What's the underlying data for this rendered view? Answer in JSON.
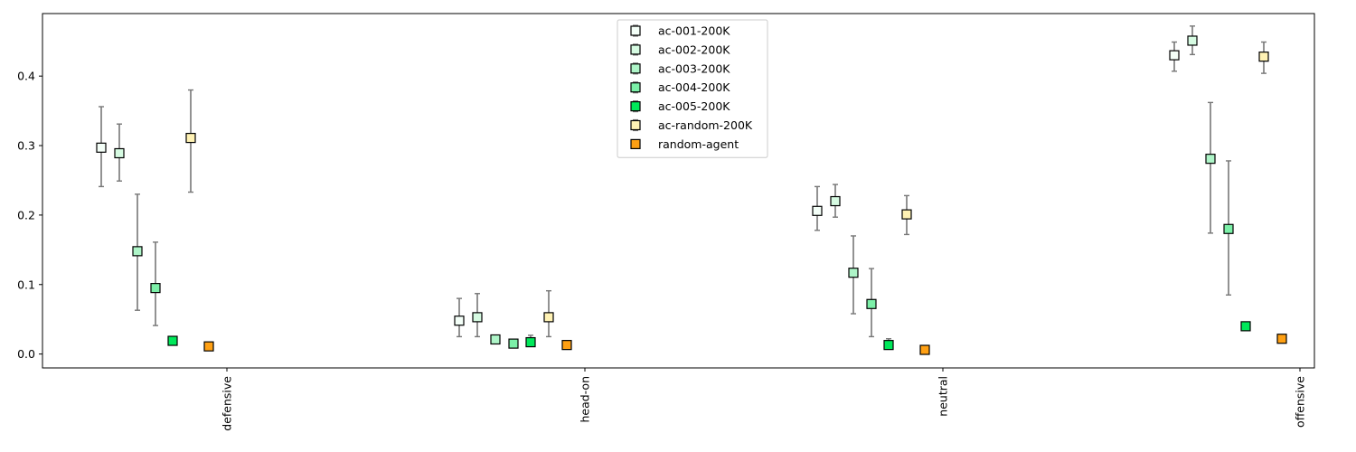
{
  "chart_data": {
    "type": "scatter",
    "title": "",
    "xlabel": "",
    "ylabel": "",
    "categories": [
      "defensive",
      "head-on",
      "neutral",
      "offensive"
    ],
    "ylim": [
      -0.02,
      0.49
    ],
    "yticks": [
      "0.0",
      "0.1",
      "0.2",
      "0.3",
      "0.4"
    ],
    "grid": false,
    "legend_position": "top-center",
    "error_bar_color": "#777777",
    "series": [
      {
        "name": "ac-001-200K",
        "color": "#f4fff8",
        "values": [
          0.297,
          0.048,
          0.206,
          0.43
        ],
        "err_low": [
          0.241,
          0.025,
          0.178,
          0.407
        ],
        "err_high": [
          0.356,
          0.08,
          0.241,
          0.449
        ]
      },
      {
        "name": "ac-002-200K",
        "color": "#d6fbe2",
        "values": [
          0.289,
          0.053,
          0.22,
          0.451
        ],
        "err_low": [
          0.249,
          0.025,
          0.197,
          0.431
        ],
        "err_high": [
          0.331,
          0.087,
          0.244,
          0.472
        ]
      },
      {
        "name": "ac-003-200K",
        "color": "#aef5c8",
        "values": [
          0.148,
          0.021,
          0.117,
          0.281
        ],
        "err_low": [
          0.063,
          0.021,
          0.058,
          0.174
        ],
        "err_high": [
          0.23,
          0.021,
          0.17,
          0.362
        ]
      },
      {
        "name": "ac-004-200K",
        "color": "#7cf0a8",
        "values": [
          0.095,
          0.015,
          0.072,
          0.18
        ],
        "err_low": [
          0.041,
          0.015,
          0.025,
          0.085
        ],
        "err_high": [
          0.161,
          0.015,
          0.123,
          0.278
        ]
      },
      {
        "name": "ac-005-200K",
        "color": "#00e85a",
        "values": [
          0.019,
          0.017,
          0.013,
          0.04
        ],
        "err_low": [
          0.019,
          0.013,
          0.01,
          0.04
        ],
        "err_high": [
          0.019,
          0.027,
          0.022,
          0.04
        ]
      },
      {
        "name": "ac-random-200K",
        "color": "#fff2b4",
        "values": [
          0.311,
          0.053,
          0.201,
          0.428
        ],
        "err_low": [
          0.233,
          0.025,
          0.172,
          0.404
        ],
        "err_high": [
          0.38,
          0.091,
          0.228,
          0.449
        ]
      },
      {
        "name": "random-agent",
        "color": "#ffa013",
        "values": [
          0.011,
          0.013,
          0.006,
          0.022
        ],
        "err_low": [
          0.011,
          0.013,
          0.006,
          0.022
        ],
        "err_high": [
          0.011,
          0.013,
          0.006,
          0.022
        ]
      }
    ]
  }
}
